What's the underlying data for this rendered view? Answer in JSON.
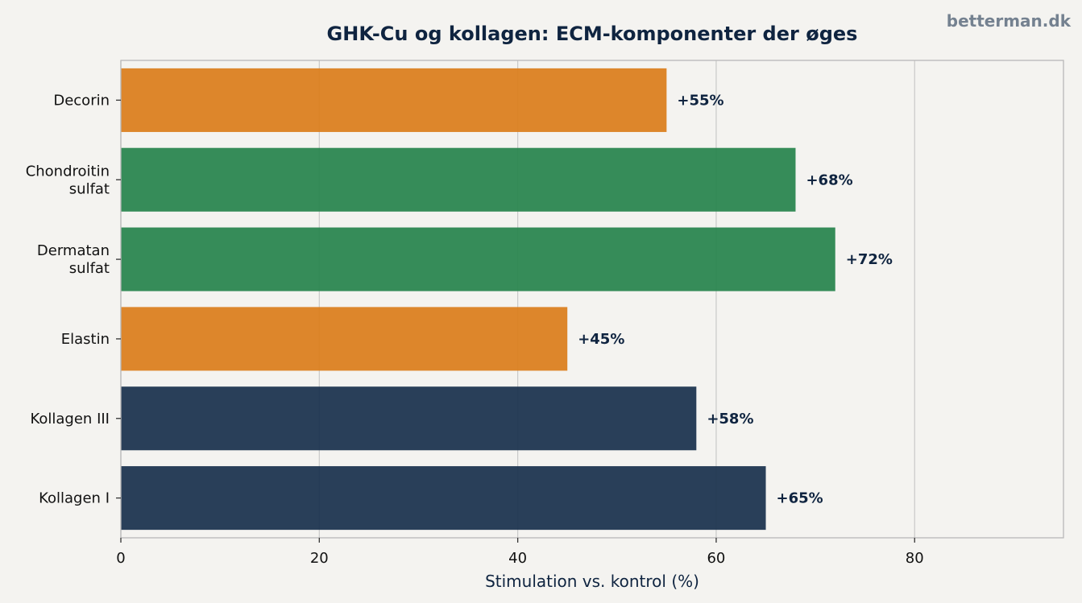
{
  "watermark": "betterman.dk",
  "chart_data": {
    "type": "bar",
    "orientation": "horizontal",
    "title": "GHK-Cu og kollagen: ECM-komponenter der øges",
    "xlabel": "Stimulation vs. kontrol (%)",
    "ylabel": "",
    "xlim": [
      0,
      95
    ],
    "xticks": [
      0,
      20,
      40,
      60,
      80
    ],
    "grid": "vertical",
    "categories": [
      "Decorin",
      "Chondroitin sulfat",
      "Dermatan sulfat",
      "Elastin",
      "Kollagen III",
      "Kollagen I"
    ],
    "category_lines": [
      [
        "Decorin"
      ],
      [
        "Chondroitin",
        "sulfat"
      ],
      [
        "Dermatan",
        "sulfat"
      ],
      [
        "Elastin"
      ],
      [
        "Kollagen III"
      ],
      [
        "Kollagen I"
      ]
    ],
    "values": [
      55,
      68,
      72,
      45,
      58,
      65
    ],
    "data_labels": [
      "+55%",
      "+68%",
      "+72%",
      "+45%",
      "+58%",
      "+65%"
    ],
    "colors": [
      "#db8020",
      "#2b8650",
      "#2b8650",
      "#db8020",
      "#1e3550",
      "#1e3550"
    ]
  }
}
